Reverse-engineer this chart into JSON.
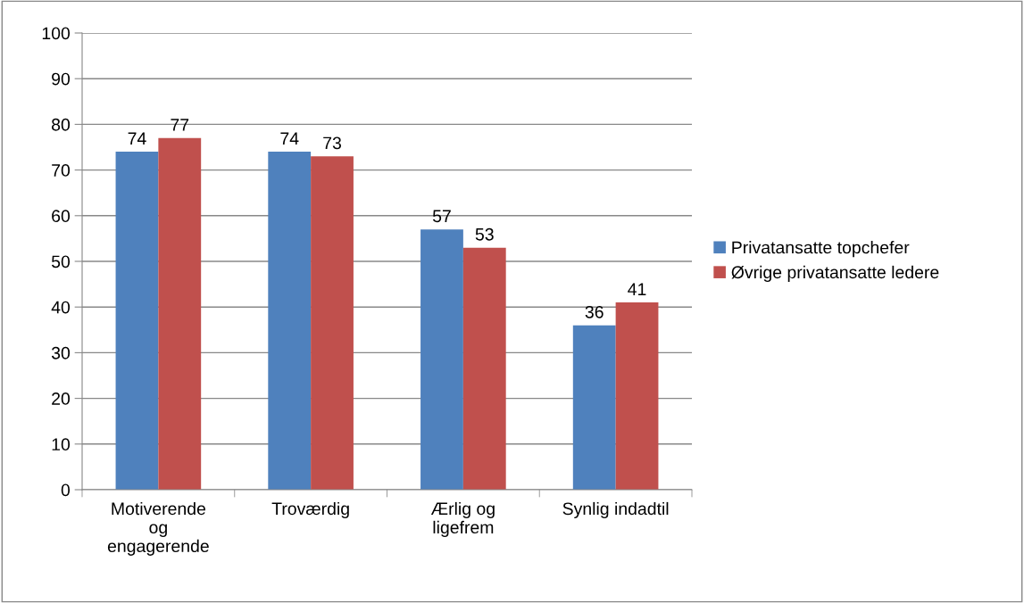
{
  "chart_data": {
    "type": "bar",
    "categories": [
      "Motiverende\nog\nengagerende",
      "Troværdig",
      "Ærlig og\nligefrem",
      "Synlig indadtil"
    ],
    "series": [
      {
        "name": "Privatansatte topchefer",
        "color": "#4f81bd",
        "values": [
          74,
          74,
          57,
          36
        ]
      },
      {
        "name": "Øvrige privatansatte ledere",
        "color": "#c0504d",
        "values": [
          77,
          73,
          53,
          41
        ]
      }
    ],
    "ylim": [
      0,
      100
    ],
    "yticks": [
      0,
      10,
      20,
      30,
      40,
      50,
      60,
      70,
      80,
      90,
      100
    ],
    "grid": "y",
    "legend": "right",
    "data_labels": true
  }
}
